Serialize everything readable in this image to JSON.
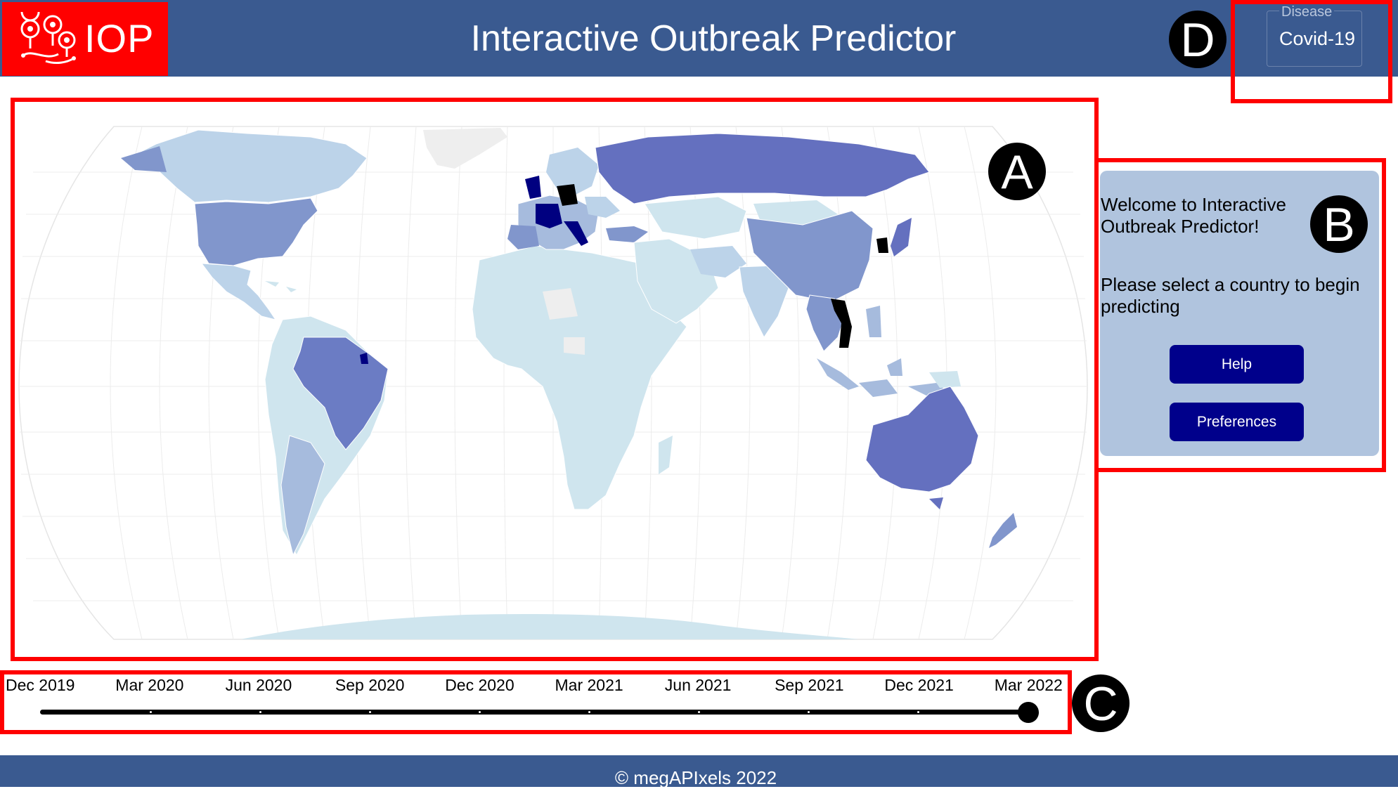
{
  "header": {
    "logo_text": "IOP",
    "title": "Interactive Outbreak Predictor",
    "disease_label": "Disease",
    "disease_value": "Covid-19"
  },
  "markers": {
    "a": "A",
    "b": "B",
    "c": "C",
    "d": "D"
  },
  "panel": {
    "welcome": "Welcome to Interactive Outbreak Predictor!",
    "instruction": "Please select a country to begin predicting",
    "help_label": "Help",
    "preferences_label": "Preferences"
  },
  "timeline": {
    "labels": [
      "Dec 2019",
      "Mar 2020",
      "Jun 2020",
      "Sep 2020",
      "Dec 2020",
      "Mar 2021",
      "Jun 2021",
      "Sep 2021",
      "Dec 2021",
      "Mar 2022"
    ],
    "selected": "Mar 2022"
  },
  "footer": {
    "text": "© megAPIxels 2022"
  },
  "colors": {
    "header_bg": "#3a5a90",
    "logo_bg": "#ff0000",
    "highlight": "#ff0000",
    "panel_bg": "#b0c4de",
    "button_bg": "#00008b",
    "map_low": "#cfe5ee",
    "map_light": "#bcd3e9",
    "map_mid": "#8196cc",
    "map_high": "#6470bf",
    "map_very_high": "#000080",
    "map_max": "#000000",
    "map_no_data": "#eeeeee"
  }
}
